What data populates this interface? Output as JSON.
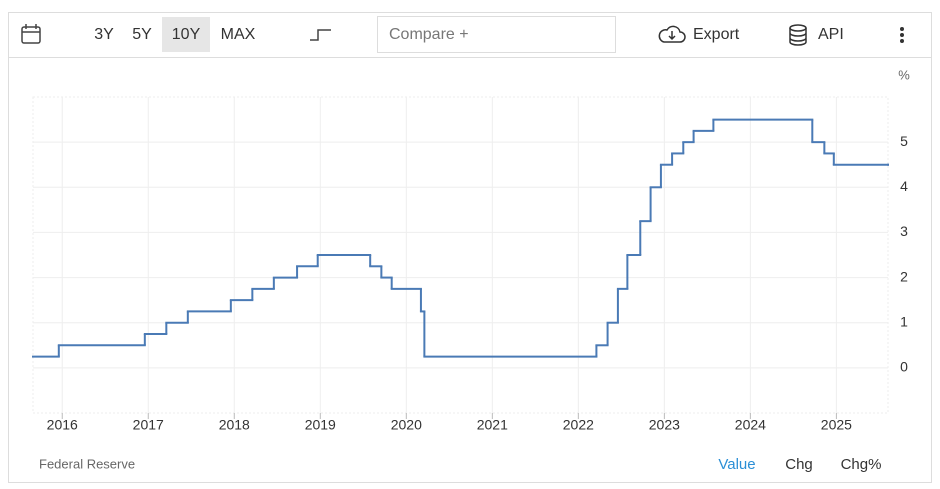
{
  "toolbar": {
    "ranges": [
      "3Y",
      "5Y",
      "10Y",
      "MAX"
    ],
    "selected_range": 2,
    "compare": "Compare +",
    "export": "Export",
    "api": "API"
  },
  "footer": {
    "source": "Federal Reserve",
    "modes": [
      "Value",
      "Chg",
      "Chg%"
    ],
    "selected_mode": 0
  },
  "chart_data": {
    "type": "step",
    "y_unit": "%",
    "series": [
      {
        "color": "#4a7ab5",
        "x": [
          2015.66,
          2015.96,
          2016.96,
          2017.21,
          2017.46,
          2017.96,
          2018.21,
          2018.46,
          2018.73,
          2018.97,
          2019.58,
          2019.71,
          2019.83,
          2020.17,
          2020.21,
          2022.21,
          2022.34,
          2022.46,
          2022.57,
          2022.72,
          2022.84,
          2022.96,
          2023.09,
          2023.22,
          2023.34,
          2023.57,
          2024.72,
          2024.86,
          2024.97,
          2025.6
        ],
        "values": [
          0.25,
          0.5,
          0.75,
          1.0,
          1.25,
          1.5,
          1.75,
          2.0,
          2.25,
          2.5,
          2.25,
          2.0,
          1.75,
          1.25,
          0.25,
          0.5,
          1.0,
          1.75,
          2.5,
          3.25,
          4.0,
          4.5,
          4.75,
          5.0,
          5.25,
          5.5,
          5.0,
          4.75,
          4.5,
          4.5
        ]
      }
    ],
    "xlim": [
      2015.66,
      2025.6
    ],
    "xticks": [
      2016,
      2017,
      2018,
      2019,
      2020,
      2021,
      2022,
      2023,
      2024,
      2025
    ],
    "ylim": [
      -1,
      6
    ],
    "yticks": [
      0,
      1,
      2,
      3,
      4,
      5
    ],
    "grid": true
  }
}
